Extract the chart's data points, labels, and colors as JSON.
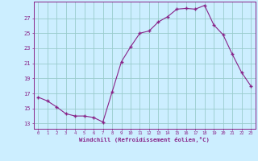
{
  "x": [
    0,
    1,
    2,
    3,
    4,
    5,
    6,
    7,
    8,
    9,
    10,
    11,
    12,
    13,
    14,
    15,
    16,
    17,
    18,
    19,
    20,
    21,
    22,
    23
  ],
  "y": [
    16.5,
    16.0,
    15.2,
    14.3,
    14.0,
    14.0,
    13.8,
    13.2,
    17.2,
    21.2,
    23.2,
    25.0,
    25.3,
    26.5,
    27.2,
    28.2,
    28.3,
    28.2,
    28.7,
    26.1,
    24.8,
    22.2,
    19.8,
    18.0
  ],
  "line_color": "#882288",
  "marker_color": "#882288",
  "bg_color": "#cceeff",
  "grid_color": "#99cccc",
  "axis_color": "#882288",
  "tick_color": "#882288",
  "xlabel": "Windchill (Refroidissement éolien,°C)",
  "ylabel_ticks": [
    13,
    15,
    17,
    19,
    21,
    23,
    25,
    27
  ],
  "xlim": [
    -0.5,
    23.5
  ],
  "ylim": [
    12.3,
    29.2
  ],
  "xticks": [
    0,
    1,
    2,
    3,
    4,
    5,
    6,
    7,
    8,
    9,
    10,
    11,
    12,
    13,
    14,
    15,
    16,
    17,
    18,
    19,
    20,
    21,
    22,
    23
  ]
}
